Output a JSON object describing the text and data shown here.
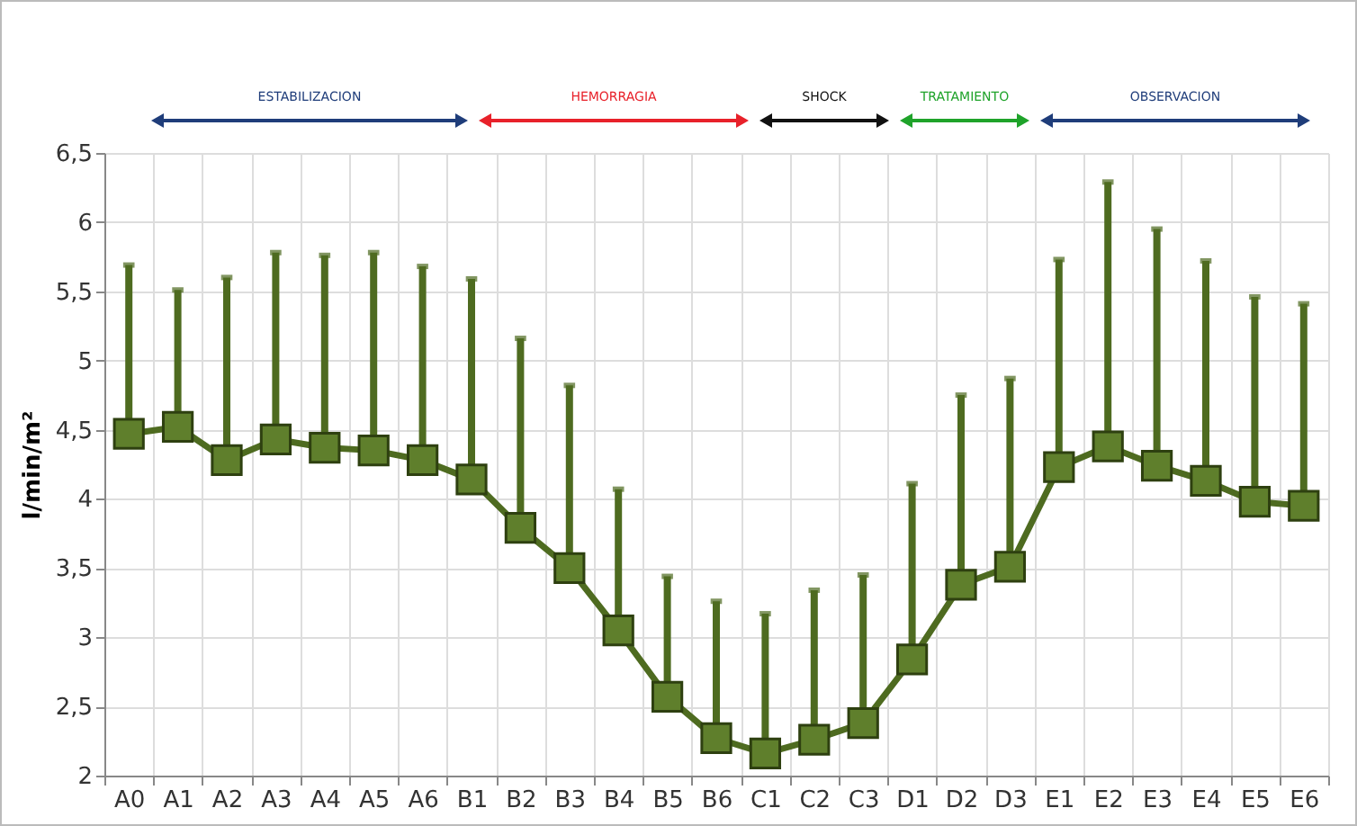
{
  "chart_data": {
    "type": "line",
    "ylabel": "l/min/m²",
    "annotations": [
      "ESTABILIZACION",
      "HEMORRAGIA",
      "SHOCK",
      "TRATAMIENTO",
      "OBSERVACION"
    ],
    "categories": [
      "A0",
      "A1",
      "A2",
      "A3",
      "A4",
      "A5",
      "A6",
      "B1",
      "B2",
      "B3",
      "B4",
      "B5",
      "B6",
      "C1",
      "C2",
      "C3",
      "D1",
      "D2",
      "D3",
      "E1",
      "E2",
      "E3",
      "E4",
      "E5",
      "E6"
    ],
    "series": [
      {
        "color": "#4e6b20",
        "values": [
          4.47,
          4.52,
          4.28,
          4.43,
          4.37,
          4.35,
          4.28,
          4.14,
          3.79,
          3.5,
          3.05,
          2.57,
          2.27,
          2.16,
          2.26,
          2.38,
          2.84,
          3.38,
          3.51,
          4.23,
          4.38,
          4.24,
          4.13,
          3.98,
          3.95
        ],
        "errors": [
          [
            4.47,
            5.69
          ],
          [
            4.52,
            5.51
          ],
          [
            4.28,
            5.6
          ],
          [
            4.43,
            5.78
          ],
          [
            4.37,
            5.76
          ],
          [
            4.35,
            5.78
          ],
          [
            4.28,
            5.68
          ],
          [
            4.14,
            5.59
          ],
          [
            3.79,
            5.16
          ],
          [
            3.5,
            4.82
          ],
          [
            3.05,
            4.07
          ],
          [
            2.57,
            3.44
          ],
          [
            2.27,
            3.26
          ],
          [
            2.16,
            3.17
          ],
          [
            2.26,
            3.34
          ],
          [
            2.38,
            3.45
          ],
          [
            2.84,
            4.11
          ],
          [
            3.38,
            4.75
          ],
          [
            3.51,
            4.87
          ],
          [
            4.23,
            5.73
          ],
          [
            4.38,
            6.29
          ],
          [
            4.24,
            5.95
          ],
          [
            4.13,
            5.72
          ],
          [
            3.98,
            5.46
          ],
          [
            3.95,
            5.41
          ]
        ]
      }
    ],
    "ylim": [
      2,
      6.5
    ],
    "yticks": [
      2,
      {
        "value": 2.5,
        "label": "2,5"
      },
      3,
      {
        "value": 3.5,
        "label": "3,5"
      },
      4,
      {
        "value": 4.5,
        "label": "4,5"
      },
      5,
      {
        "value": 5.5,
        "label": "5,5"
      },
      6,
      {
        "value": 6.5,
        "label": "6,5"
      }
    ],
    "grid": true,
    "marker": "square",
    "line_style": "solid"
  }
}
